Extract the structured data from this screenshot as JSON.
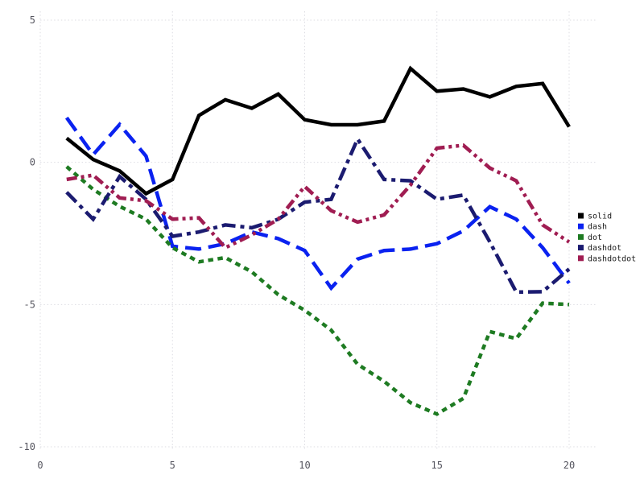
{
  "chart_data": {
    "type": "line",
    "title": "",
    "xlabel": "",
    "ylabel": "",
    "xlim": [
      0,
      20
    ],
    "ylim": [
      -10,
      5
    ],
    "x_ticks": [
      0,
      5,
      10,
      15,
      20
    ],
    "y_ticks": [
      5,
      0,
      -5,
      -10
    ],
    "x_tick_labels": [
      "0",
      "5",
      "10",
      "15",
      "20"
    ],
    "y_tick_labels": [
      "5",
      "0",
      "-5",
      "-10"
    ],
    "grid": "dotted",
    "grid_color": "#dcdce2",
    "tick_label_color": "#55555f",
    "legend_position": "right",
    "legend_text_color": "#1a1a1a",
    "x": [
      1,
      2,
      3,
      4,
      5,
      6,
      7,
      8,
      9,
      10,
      11,
      12,
      13,
      14,
      15,
      16,
      17,
      18,
      19,
      20
    ],
    "series": [
      {
        "name": "solid",
        "line_style": "solid",
        "color": "#000000",
        "values": [
          0.85,
          0.1,
          -0.3,
          -1.1,
          -0.6,
          1.65,
          2.2,
          1.9,
          2.4,
          1.5,
          1.32,
          1.32,
          1.45,
          3.3,
          2.5,
          2.58,
          2.3,
          2.67,
          2.77,
          1.25
        ]
      },
      {
        "name": "dash",
        "line_style": "dash",
        "color": "#0a22f0",
        "values": [
          1.57,
          0.27,
          1.33,
          0.22,
          -2.95,
          -3.05,
          -2.86,
          -2.45,
          -2.68,
          -3.1,
          -4.42,
          -3.4,
          -3.1,
          -3.05,
          -2.86,
          -2.41,
          -1.56,
          -2.0,
          -3.0,
          -4.25
        ]
      },
      {
        "name": "dot",
        "line_style": "dot",
        "color": "#1e7b22",
        "values": [
          -0.15,
          -0.95,
          -1.55,
          -2.0,
          -3.0,
          -3.5,
          -3.35,
          -3.85,
          -4.65,
          -5.2,
          -5.9,
          -7.1,
          -7.7,
          -8.45,
          -8.85,
          -8.3,
          -5.95,
          -6.2,
          -4.95,
          -5.0
        ]
      },
      {
        "name": "dashdot",
        "line_style": "dashdot",
        "color": "#1b1b70",
        "values": [
          -1.05,
          -2.0,
          -0.5,
          -1.3,
          -2.6,
          -2.45,
          -2.2,
          -2.3,
          -2.0,
          -1.4,
          -1.3,
          0.82,
          -0.6,
          -0.65,
          -1.3,
          -1.15,
          -2.8,
          -4.56,
          -4.55,
          -3.75
        ]
      },
      {
        "name": "dashdotdot",
        "line_style": "dashdotdot",
        "color": "#a01d52",
        "values": [
          -0.6,
          -0.45,
          -1.25,
          -1.35,
          -2.0,
          -1.95,
          -3.0,
          -2.55,
          -2.0,
          -0.85,
          -1.7,
          -2.1,
          -1.85,
          -0.8,
          0.5,
          0.6,
          -0.2,
          -0.65,
          -2.2,
          -2.8
        ]
      }
    ],
    "legend_items": [
      "solid",
      "dash",
      "dot",
      "dashdot",
      "dashdotdot"
    ]
  }
}
